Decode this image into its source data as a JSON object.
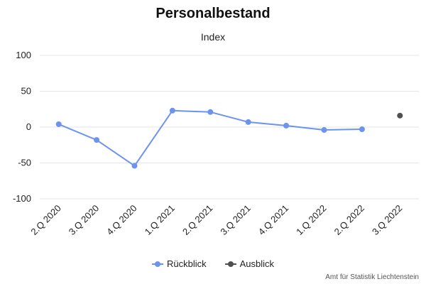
{
  "chart_data": {
    "type": "line",
    "title": "Personalbestand",
    "subtitle": "Index",
    "categories": [
      "2.Q 2020",
      "3.Q 2020",
      "4.Q 2020",
      "1.Q 2021",
      "2.Q 2021",
      "3.Q 2021",
      "4.Q 2021",
      "1.Q 2022",
      "2.Q 2022",
      "3.Q 2022"
    ],
    "y_ticks": [
      "100",
      "50",
      "0",
      "-50",
      "-100"
    ],
    "ylim": [
      -100,
      100
    ],
    "grid": true,
    "legend_position": "bottom-center",
    "series": [
      {
        "name": "Rückblick",
        "color": "#6b93ef",
        "style": "line-with-markers",
        "values": [
          4,
          -18,
          -54,
          23,
          21,
          7,
          2,
          -4,
          -3,
          null
        ]
      },
      {
        "name": "Ausblick",
        "color": "#505050",
        "style": "markers-only",
        "values": [
          null,
          null,
          null,
          null,
          null,
          null,
          null,
          null,
          null,
          16
        ]
      }
    ],
    "credits": "Amt für Statistik Liechtenstein"
  }
}
